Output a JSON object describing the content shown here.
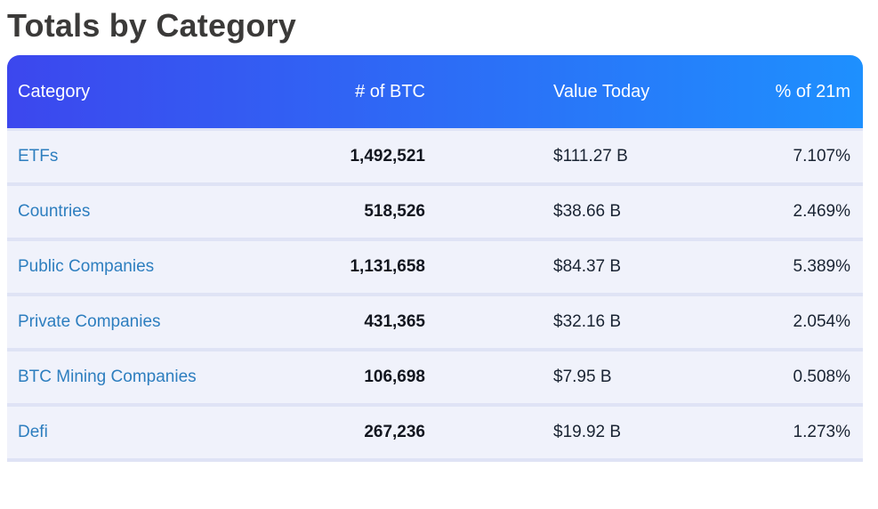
{
  "page": {
    "title": "Totals by Category"
  },
  "table": {
    "columns": [
      {
        "label": "Category"
      },
      {
        "label": "# of BTC"
      },
      {
        "label": "Value Today"
      },
      {
        "label": "% of 21m"
      }
    ],
    "rows": [
      {
        "category": "ETFs",
        "btc": "1,492,521",
        "value": "$111.27 B",
        "pct": "7.107%"
      },
      {
        "category": "Countries",
        "btc": "518,526",
        "value": "$38.66 B",
        "pct": "2.469%"
      },
      {
        "category": "Public Companies",
        "btc": "1,131,658",
        "value": "$84.37 B",
        "pct": "5.389%"
      },
      {
        "category": "Private Companies",
        "btc": "431,365",
        "value": "$32.16 B",
        "pct": "2.054%"
      },
      {
        "category": "BTC Mining Companies",
        "btc": "106,698",
        "value": "$7.95 B",
        "pct": "0.508%"
      },
      {
        "category": "Defi",
        "btc": "267,236",
        "value": "$19.92 B",
        "pct": "1.273%"
      }
    ]
  },
  "colors": {
    "header_gradient_start": "#3c47ee",
    "header_gradient_end": "#1e90fe",
    "header_text": "#ffffff",
    "row_background": "#f0f2fb",
    "divider": "#dfe3f5",
    "link": "#2d7ebf",
    "btc_number": "#12161f",
    "title": "#3b3a39"
  }
}
